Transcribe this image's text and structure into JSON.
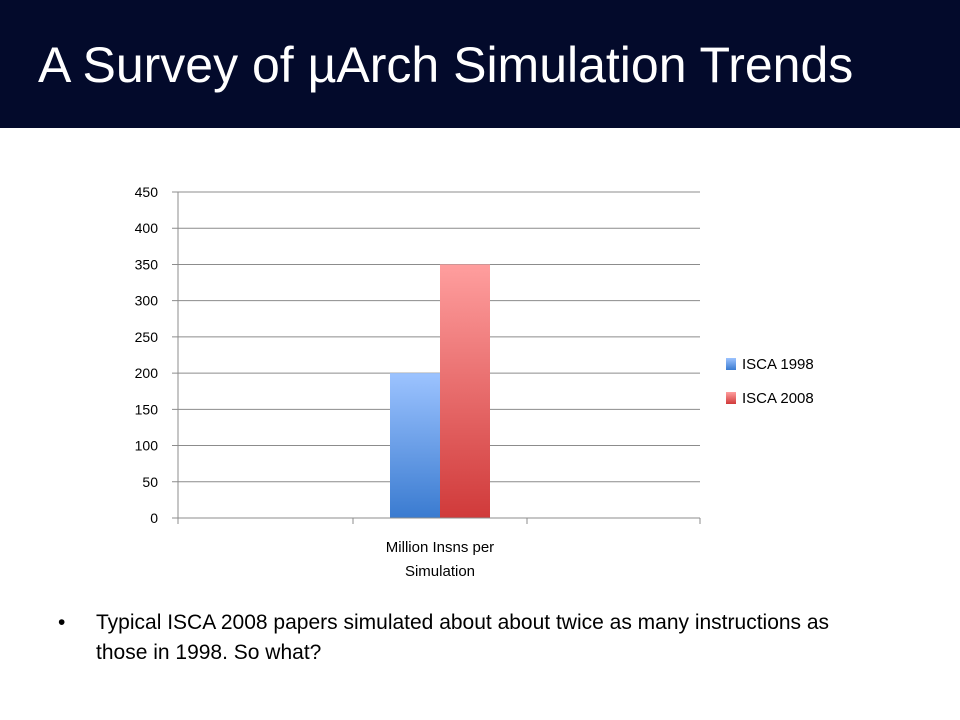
{
  "slide": {
    "title": "A Survey of µArch Simulation Trends",
    "bullet_marker": "•",
    "bullet_text": "Typical ISCA 2008 papers simulated about about twice as many instructions as those in 1998.  So what?"
  },
  "chart_data": {
    "type": "bar",
    "categories": [
      "Million Insns per Simulation"
    ],
    "series": [
      {
        "name": "ISCA 1998",
        "values": [
          200
        ],
        "color": "#6b9be8"
      },
      {
        "name": "ISCA 2008",
        "values": [
          350
        ],
        "color": "#e96a6a"
      }
    ],
    "ylim": [
      0,
      450
    ],
    "yticks": [
      "0",
      "50",
      "100",
      "150",
      "200",
      "250",
      "300",
      "350",
      "400",
      "450"
    ],
    "category_label_lines": [
      "Million Insns per",
      "Simulation"
    ],
    "grid": true,
    "legend": "right"
  }
}
